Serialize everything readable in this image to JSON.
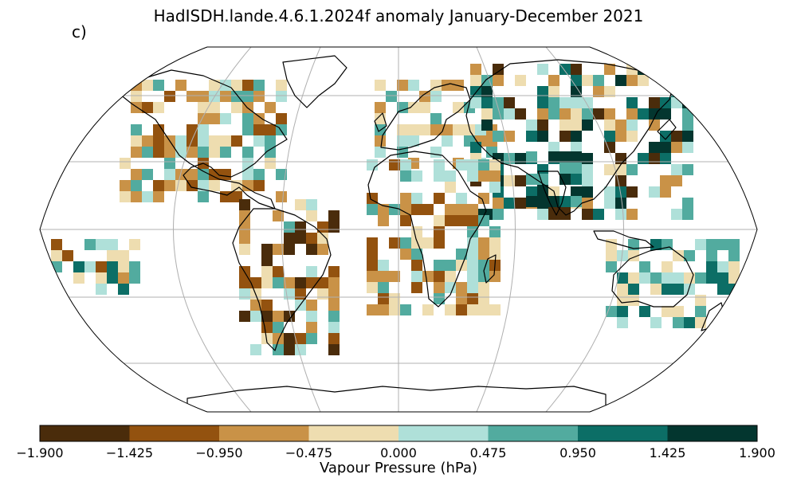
{
  "title": "HadISDH.lande.4.6.1.2024f anomaly January-December 2021",
  "panel_label": "c)",
  "colorbar": {
    "label": "Vapour Pressure (hPa)",
    "ticks": [
      "−1.900",
      "−1.425",
      "−0.950",
      "−0.475",
      "0.000",
      "0.475",
      "0.950",
      "1.425",
      "1.900"
    ],
    "colors": [
      "#4a2c0b",
      "#93520f",
      "#c99247",
      "#eeddb0",
      "#afe0d9",
      "#52ab9f",
      "#0c6e66",
      "#03362f"
    ]
  },
  "map": {
    "projection": "Robinson",
    "gridlines": true,
    "colors": {
      "land_outline": "#000000",
      "graticule": "#b0b0b0"
    }
  }
}
